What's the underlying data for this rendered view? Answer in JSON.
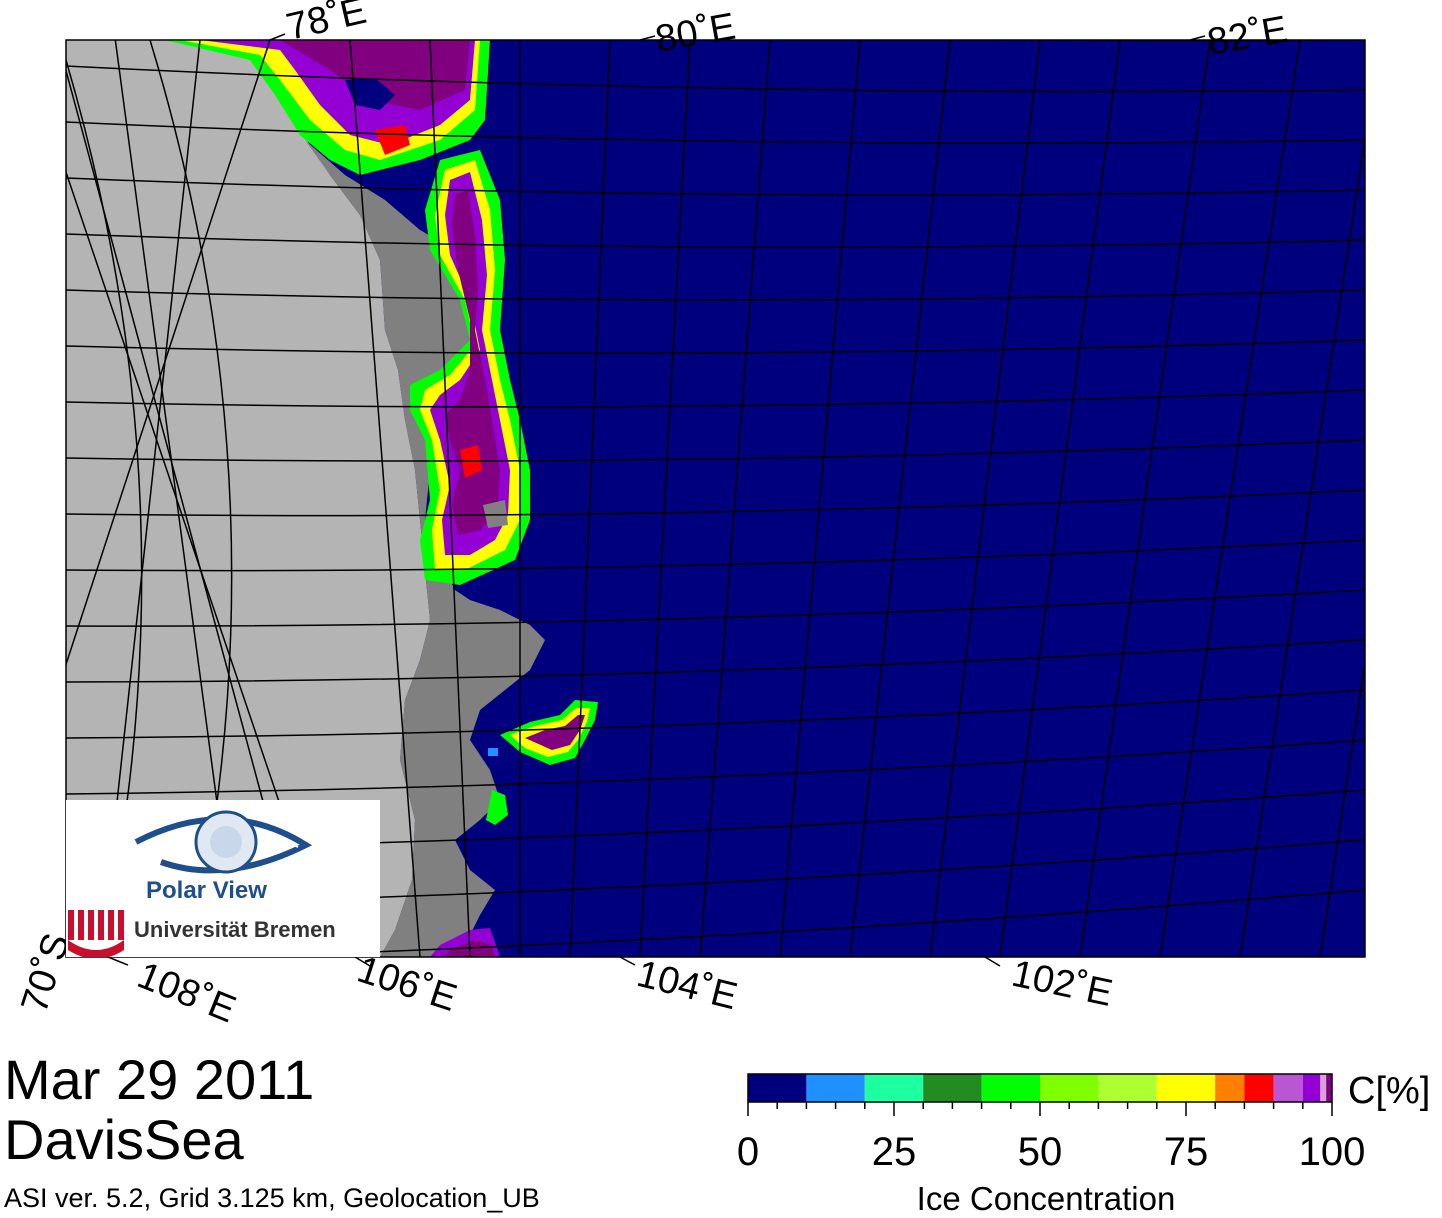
{
  "map": {
    "top_labels": [
      "78˚E",
      "80˚E",
      "82˚E"
    ],
    "bottom_labels": [
      "108˚E",
      "106˚E",
      "104˚E",
      "102˚E"
    ],
    "lat_label": "70˚S",
    "colors": {
      "ocean": "#00007f",
      "land": "#b4b4b4",
      "shelf": "#808080",
      "grid": "#000000"
    }
  },
  "logo": {
    "line1": "Polar View",
    "line2": "Universität Bremen",
    "icon": "eye-globe-icon"
  },
  "footer": {
    "date": "Mar 29 2011",
    "region": "DavisSea",
    "info": "ASI ver. 5.2,  Grid 3.125 km, Geolocation_UB"
  },
  "colorbar": {
    "title": "Ice Concentration",
    "unit": "C[%]",
    "tick_labels": [
      "0",
      "25",
      "50",
      "75",
      "100"
    ],
    "tick_values": [
      0,
      25,
      50,
      75,
      100
    ],
    "bins": [
      {
        "from": 0,
        "to": 10,
        "color": "#00007f"
      },
      {
        "from": 10,
        "to": 20,
        "color": "#1e90ff"
      },
      {
        "from": 20,
        "to": 30,
        "color": "#1effa0"
      },
      {
        "from": 30,
        "to": 40,
        "color": "#228b22"
      },
      {
        "from": 40,
        "to": 50,
        "color": "#00ff00"
      },
      {
        "from": 50,
        "to": 60,
        "color": "#7fff00"
      },
      {
        "from": 60,
        "to": 70,
        "color": "#adff2f"
      },
      {
        "from": 70,
        "to": 80,
        "color": "#ffff00"
      },
      {
        "from": 80,
        "to": 85,
        "color": "#ff7f00"
      },
      {
        "from": 85,
        "to": 90,
        "color": "#ff0000"
      },
      {
        "from": 90,
        "to": 95,
        "color": "#ba55d3"
      },
      {
        "from": 95,
        "to": 98,
        "color": "#9400d3"
      },
      {
        "from": 98,
        "to": 99,
        "color": "#dda0dd"
      },
      {
        "from": 99,
        "to": 100,
        "color": "#800080"
      }
    ]
  }
}
